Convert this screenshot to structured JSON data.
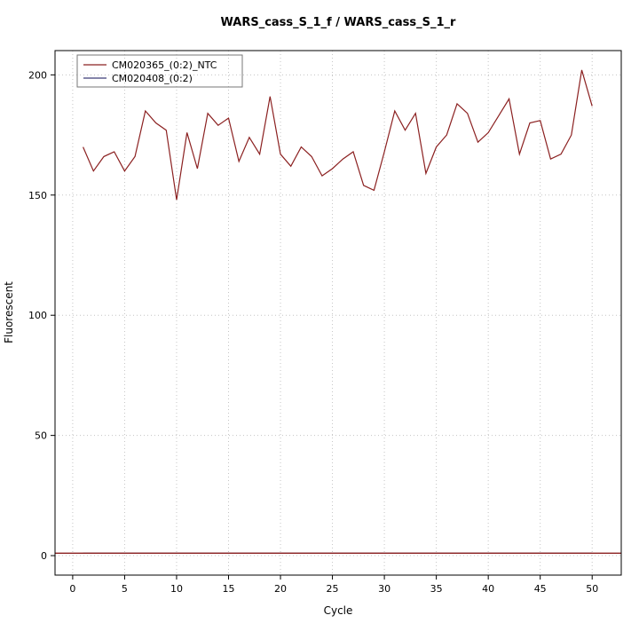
{
  "chart_data": {
    "type": "line",
    "title": "WARS_cass_S_1_f / WARS_cass_S_1_r",
    "xlabel": "Cycle",
    "ylabel": "Fluorescent",
    "xlim": [
      -1.7,
      52.8
    ],
    "ylim": [
      -8.1,
      210.1
    ],
    "xticks": [
      0,
      5,
      10,
      15,
      20,
      25,
      30,
      35,
      40,
      45,
      50
    ],
    "yticks": [
      0,
      50,
      100,
      150,
      200
    ],
    "grid": "dotted",
    "grid_color": "#c4c4c4",
    "legend_position": "top-left",
    "series": [
      {
        "name": "CM020365_(0:2)_NTC",
        "color": "#8b2020",
        "x_start": 1,
        "x_step": 1,
        "values": [
          170,
          160,
          166,
          168,
          160,
          166,
          185,
          180,
          177,
          148,
          176,
          161,
          184,
          179,
          182,
          164,
          174,
          167,
          191,
          167,
          162,
          170,
          166,
          158,
          161,
          165,
          168,
          154,
          152,
          168,
          185,
          177,
          184,
          159,
          170,
          175,
          188,
          184,
          172,
          176,
          183,
          190,
          167,
          180,
          181,
          165,
          167,
          175,
          202,
          187
        ]
      },
      {
        "name": "CM020408_(0:2)",
        "color": "#3c3c78",
        "x_start": 1,
        "x_step": 1,
        "values": [
          1,
          1,
          1,
          1,
          1,
          1,
          1,
          1,
          1,
          1,
          1,
          1,
          1,
          1,
          1,
          1,
          1,
          1,
          1,
          1,
          1,
          1,
          1,
          1,
          1,
          1,
          1,
          1,
          1,
          1,
          1,
          1,
          1,
          1,
          1,
          1,
          1,
          1,
          1,
          1,
          1,
          1,
          1,
          1,
          1,
          1,
          1,
          1,
          1,
          1
        ]
      }
    ],
    "threshold_line": {
      "y": 1,
      "color": "#8b2020"
    }
  }
}
